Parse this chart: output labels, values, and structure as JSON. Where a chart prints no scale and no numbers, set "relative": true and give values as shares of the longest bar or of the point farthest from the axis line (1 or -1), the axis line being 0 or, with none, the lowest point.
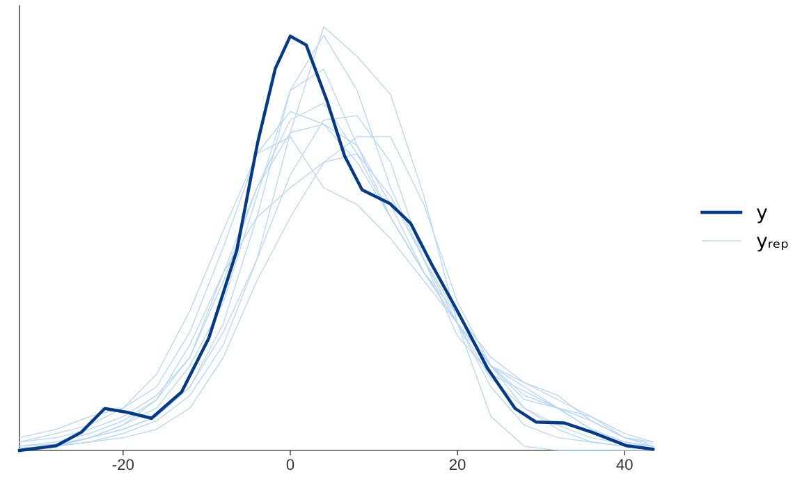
{
  "chart_data": {
    "type": "line",
    "relative": true,
    "legend": "right",
    "grid": false,
    "tick_labels": "x",
    "marker": "none",
    "line_style": "solid",
    "xlim": [
      -32.4,
      43.4
    ],
    "xticks": [
      -20,
      0,
      20,
      40
    ],
    "x": [
      -32.4,
      -28,
      -24,
      -20,
      -16,
      -12,
      -8,
      -4,
      0,
      4,
      8,
      12,
      16,
      20,
      24,
      28,
      32,
      36,
      40,
      43.4
    ],
    "series": [
      {
        "name": "yᵣₑₚ",
        "color": "#b3d4fc",
        "values": [
          0.005,
          0.01,
          0.02,
          0.04,
          0.07,
          0.13,
          0.25,
          0.45,
          0.75,
          1,
          0.93,
          0.84,
          0.6,
          0.3,
          0.08,
          0.01,
          0.0,
          0.0,
          0.0,
          0.0
        ]
      },
      {
        "color": "#b3d4fc",
        "values": [
          0.01,
          0.015,
          0.03,
          0.05,
          0.08,
          0.15,
          0.3,
          0.55,
          0.85,
          0.98,
          0.85,
          0.62,
          0.45,
          0.3,
          0.15,
          0.06,
          0.03,
          0.02,
          0.01,
          0.005
        ]
      },
      {
        "color": "#b3d4fc",
        "values": [
          0.005,
          0.01,
          0.03,
          0.06,
          0.1,
          0.2,
          0.35,
          0.6,
          0.85,
          0.9,
          0.72,
          0.55,
          0.42,
          0.3,
          0.17,
          0.1,
          0.06,
          0.03,
          0.015,
          0.01
        ]
      },
      {
        "color": "#b3d4fc",
        "values": [
          0.02,
          0.03,
          0.05,
          0.08,
          0.13,
          0.22,
          0.4,
          0.62,
          0.78,
          0.82,
          0.7,
          0.55,
          0.42,
          0.32,
          0.2,
          0.1,
          0.05,
          0.02,
          0.01,
          0.005
        ]
      },
      {
        "color": "#b3d4fc",
        "values": [
          0.03,
          0.05,
          0.08,
          0.1,
          0.15,
          0.28,
          0.48,
          0.7,
          0.8,
          0.77,
          0.68,
          0.55,
          0.42,
          0.3,
          0.2,
          0.16,
          0.13,
          0.07,
          0.03,
          0.02
        ]
      },
      {
        "color": "#b3d4fc",
        "values": [
          0.005,
          0.01,
          0.03,
          0.05,
          0.08,
          0.15,
          0.28,
          0.45,
          0.65,
          0.78,
          0.79,
          0.68,
          0.45,
          0.27,
          0.18,
          0.14,
          0.1,
          0.05,
          0.02,
          0.01
        ]
      },
      {
        "color": "#b3d4fc",
        "values": [
          0.005,
          0.01,
          0.02,
          0.03,
          0.05,
          0.1,
          0.22,
          0.4,
          0.55,
          0.68,
          0.74,
          0.74,
          0.58,
          0.35,
          0.2,
          0.12,
          0.1,
          0.07,
          0.03,
          0.015
        ]
      },
      {
        "color": "#b3d4fc",
        "values": [
          0.02,
          0.04,
          0.06,
          0.1,
          0.18,
          0.33,
          0.52,
          0.7,
          0.74,
          0.62,
          0.58,
          0.5,
          0.4,
          0.3,
          0.2,
          0.13,
          0.1,
          0.08,
          0.03,
          0.01
        ]
      },
      {
        "color": "#b3d4fc",
        "values": [
          0.01,
          0.02,
          0.04,
          0.07,
          0.12,
          0.22,
          0.42,
          0.62,
          0.75,
          0.77,
          0.72,
          0.58,
          0.42,
          0.3,
          0.2,
          0.15,
          0.1,
          0.05,
          0.02,
          0.01
        ]
      },
      {
        "color": "#b3d4fc",
        "values": [
          0.005,
          0.01,
          0.03,
          0.06,
          0.12,
          0.25,
          0.42,
          0.55,
          0.62,
          0.68,
          0.7,
          0.6,
          0.45,
          0.32,
          0.22,
          0.16,
          0.12,
          0.08,
          0.04,
          0.02
        ]
      },
      {
        "name": "y",
        "color": "#033a87",
        "x": [
          -32.4,
          -28,
          -25,
          -22.2,
          -19.5,
          -16.6,
          -13,
          -9.75,
          -6.4,
          -3.9,
          -1.8,
          0,
          1.9,
          4.4,
          6.5,
          8.6,
          11.9,
          14.4,
          16.9,
          20,
          23.6,
          26.9,
          29.4,
          32.75,
          36.1,
          40.25,
          43.4
        ],
        "values": [
          0,
          0.011,
          0.043,
          0.099,
          0.09,
          0.076,
          0.138,
          0.265,
          0.472,
          0.727,
          0.901,
          0.978,
          0.957,
          0.825,
          0.695,
          0.615,
          0.583,
          0.536,
          0.44,
          0.329,
          0.194,
          0.099,
          0.067,
          0.065,
          0.043,
          0.011,
          0.003
        ]
      }
    ]
  }
}
